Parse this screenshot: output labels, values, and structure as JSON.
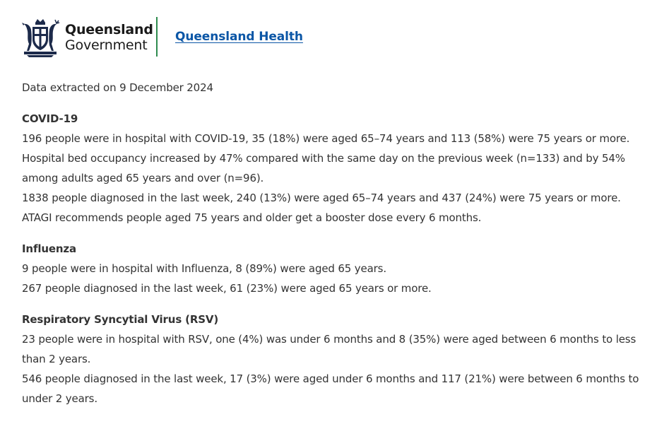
{
  "header": {
    "gov_line1": "Queensland",
    "gov_line2": "Government",
    "health_link": "Queensland Health",
    "accent_color": "#2e8b4e",
    "link_color": "#0b56a6"
  },
  "extracted": "Data extracted on 9 December 2024",
  "covid": {
    "heading": "COVID-19",
    "lines": [
      "196 people were in hospital with COVID-19, 35 (18%) were aged 65–74 years and 113 (58%) were 75 years or more.",
      "Hospital bed occupancy increased by 47% compared with the same day on the previous week (n=133) and by 54% among adults aged 65 years and over (n=96).",
      "1838 people diagnosed in the last week, 240 (13%) were aged 65–74 years and 437 (24%) were 75 years or more.",
      "ATAGI recommends people aged 75 years and older get a booster dose every 6 months."
    ]
  },
  "influenza": {
    "heading": "Influenza",
    "lines": [
      "9 people were in hospital with Influenza, 8 (89%) were aged 65 years.",
      "267 people diagnosed in the last week, 61 (23%) were aged 65 years or more."
    ]
  },
  "rsv": {
    "heading": "Respiratory Syncytial Virus (RSV)",
    "lines": [
      "23 people were in hospital with RSV, one (4%) was under 6 months and 8 (35%) were aged between 6 months to less than 2 years.",
      "546 people diagnosed in the last week, 17 (3%) were aged under 6 months and 117 (21%) were between 6 months to under 2 years."
    ]
  }
}
